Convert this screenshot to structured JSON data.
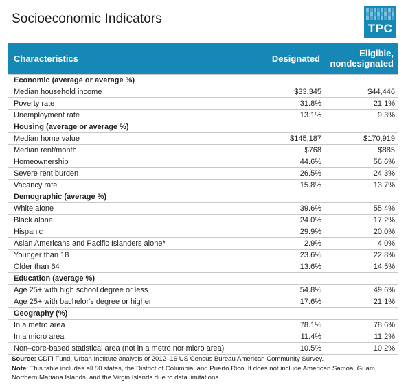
{
  "title": "Socioeconomic Indicators",
  "logo": {
    "text": "TPC",
    "color": "#1688b5"
  },
  "table": {
    "headers": {
      "characteristics": "Characteristics",
      "designated": "Designated",
      "eligible_line1": "Eligible,",
      "eligible_line2": "nondesignated"
    },
    "sections": [
      {
        "title": "Economic (average or average %)",
        "rows": [
          {
            "label": "Median household income",
            "designated": "$33,345",
            "eligible": "$44,446"
          },
          {
            "label": "Poverty rate",
            "designated": "31.8%",
            "eligible": "21.1%"
          },
          {
            "label": "Unemployment rate",
            "designated": "13.1%",
            "eligible": "9.3%"
          }
        ]
      },
      {
        "title": "Housing (average or average %)",
        "rows": [
          {
            "label": "Median home value",
            "designated": "$145,187",
            "eligible": "$170,919"
          },
          {
            "label": "Median rent/month",
            "designated": "$768",
            "eligible": "$885"
          },
          {
            "label": "Homeownership",
            "designated": "44.6%",
            "eligible": "56.6%"
          },
          {
            "label": "Severe rent burden",
            "designated": "26.5%",
            "eligible": "24.3%"
          },
          {
            "label": "Vacancy rate",
            "designated": "15.8%",
            "eligible": "13.7%"
          }
        ]
      },
      {
        "title": "Demographic (average %)",
        "rows": [
          {
            "label": "White alone",
            "designated": "39.6%",
            "eligible": "55.4%"
          },
          {
            "label": "Black alone",
            "designated": "24.0%",
            "eligible": "17.2%"
          },
          {
            "label": "Hispanic",
            "designated": "29.9%",
            "eligible": "20.0%"
          },
          {
            "label": "Asian Americans and Pacific Islanders alone*",
            "designated": "2.9%",
            "eligible": "4.0%"
          },
          {
            "label": "Younger than 18",
            "designated": "23.6%",
            "eligible": "22.8%"
          },
          {
            "label": "Older than 64",
            "designated": "13.6%",
            "eligible": "14.5%"
          }
        ]
      },
      {
        "title": "Education (average %)",
        "rows": [
          {
            "label": "Age 25+ with high school degree or less",
            "designated": "54.8%",
            "eligible": "49.6%"
          },
          {
            "label": "Age 25+ with bachelor's degree or higher",
            "designated": "17.6%",
            "eligible": "21.1%"
          }
        ]
      },
      {
        "title": "Geography (%)",
        "rows": [
          {
            "label": "In a metro area",
            "designated": "78.1%",
            "eligible": "78.6%"
          },
          {
            "label": "In a micro area",
            "designated": "11.4%",
            "eligible": "11.2%"
          },
          {
            "label": "Non–core-based statistical area (not in a metro nor micro area)",
            "designated": "10.5%",
            "eligible": "10.2%"
          }
        ]
      }
    ]
  },
  "notes": {
    "source_label": "Source:",
    "source_text": " CDFI Fund, Urban Institute analysis of 2012–16 US Census Bureau American Community Survey.",
    "note_label": "Note",
    "note_text": ": This table includes all 50 states, the District of Columbia, and Puerto Rico. It does not include American Samoa, Guam, Northern Mariana Islands, and the Virgin Islands due to data limitations."
  }
}
